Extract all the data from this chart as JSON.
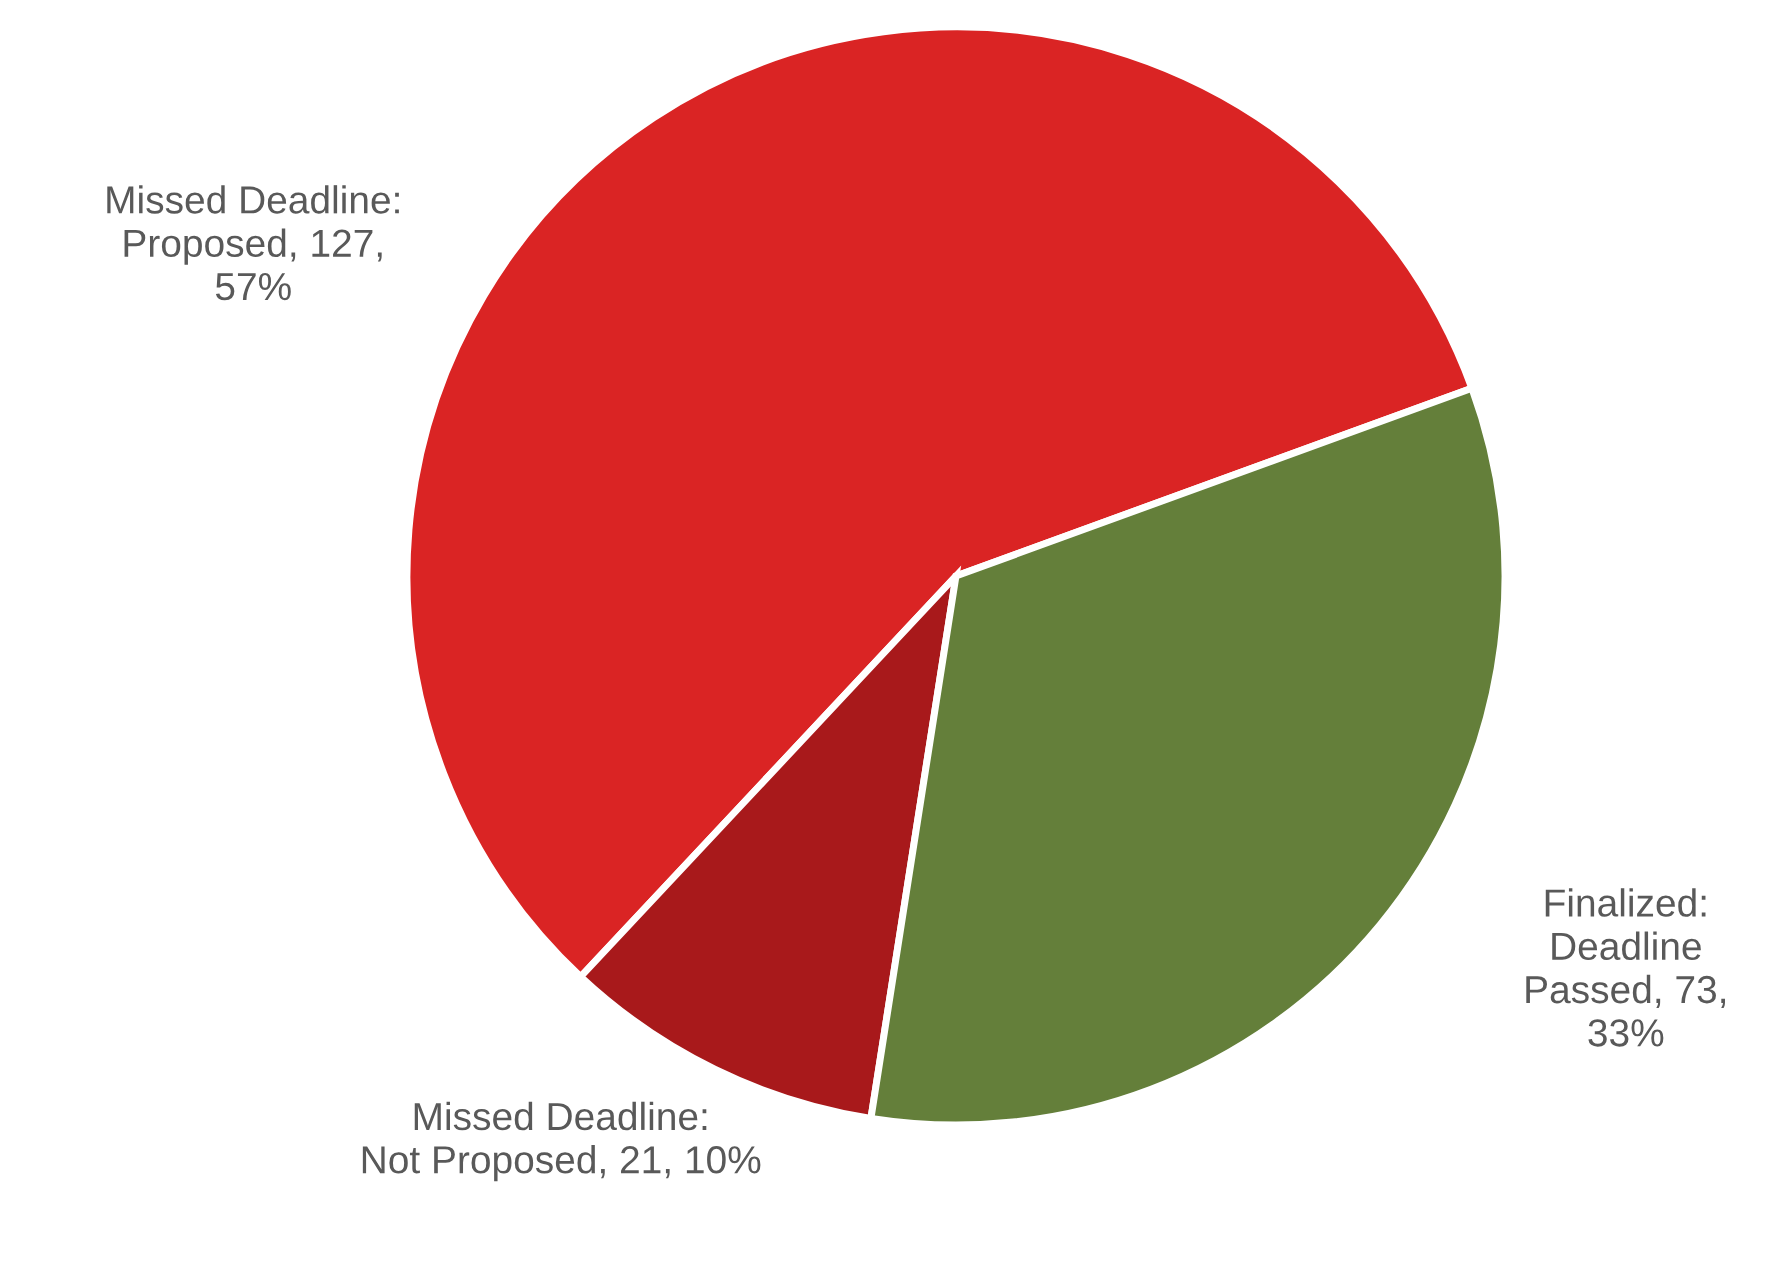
{
  "chart_data": {
    "type": "pie",
    "categories": [
      "Missed Deadline:\nProposed",
      "Missed Deadline:\nNot Proposed",
      "Finalized:\nDeadline\nPassed"
    ],
    "values": [
      127,
      21,
      73
    ],
    "value_labels": [
      "127,\n57%",
      "21, 10%",
      "73,\n33%"
    ],
    "colors": [
      "#da2424",
      "#a8191b",
      "#647f3a"
    ]
  }
}
